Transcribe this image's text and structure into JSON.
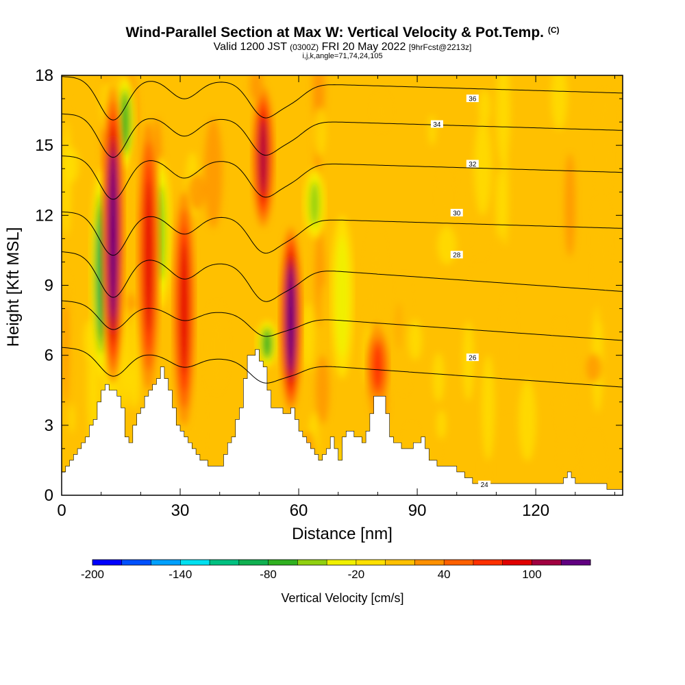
{
  "header": {
    "title": "Wind-Parallel Section at Max W: Vertical Velocity & Pot.Temp.",
    "title_mark": "(C)",
    "valid_a": "Valid 1200 JST",
    "valid_zone": "(0300Z)",
    "valid_b": "FRI 20 May 2022",
    "valid_fcst": "[9hrFcst@2213z]",
    "params": "i,j,k,angle=71,74,24,105"
  },
  "chart_data": {
    "type": "heatmap",
    "xlabel": "Distance [nm]",
    "ylabel": "Height [Kft MSL]",
    "xlim": [
      0,
      142
    ],
    "ylim": [
      0,
      18
    ],
    "x_ticks": [
      "0",
      "30",
      "60",
      "90",
      "120"
    ],
    "y_ticks": [
      "0",
      "3",
      "6",
      "9",
      "12",
      "15",
      "18"
    ],
    "colorbar": {
      "label": "Vertical Velocity [cm/s]",
      "tick_labels": [
        "-200",
        "-140",
        "-80",
        "-20",
        "40",
        "100"
      ],
      "levels": [
        -200,
        -180,
        -160,
        -140,
        -120,
        -100,
        -80,
        -60,
        -40,
        -20,
        0,
        20,
        40,
        60,
        80,
        100,
        120,
        140
      ],
      "colors": [
        "#0000ff",
        "#0050ff",
        "#00a0ff",
        "#00e0f0",
        "#00c080",
        "#10b050",
        "#30b020",
        "#90d010",
        "#f0f000",
        "#ffe000",
        "#ffc000",
        "#ff9000",
        "#ff6000",
        "#ff3000",
        "#e00000",
        "#a00040",
        "#600080"
      ]
    },
    "theta_labels": [
      "24",
      "26",
      "28",
      "30",
      "32",
      "34",
      "36"
    ],
    "terrain_kft": [
      [
        0,
        1.0
      ],
      [
        2,
        1.6
      ],
      [
        4,
        2.0
      ],
      [
        6,
        2.5
      ],
      [
        8,
        3.3
      ],
      [
        9,
        4.0
      ],
      [
        10,
        4.4
      ],
      [
        11,
        4.8
      ],
      [
        12,
        4.6
      ],
      [
        14,
        4.3
      ],
      [
        15,
        3.8
      ],
      [
        16,
        2.6
      ],
      [
        17,
        2.3
      ],
      [
        18,
        3.0
      ],
      [
        20,
        3.8
      ],
      [
        22,
        4.5
      ],
      [
        24,
        5.0
      ],
      [
        25,
        5.4
      ],
      [
        26,
        5.0
      ],
      [
        27,
        4.5
      ],
      [
        28,
        3.8
      ],
      [
        29,
        3.0
      ],
      [
        30,
        2.7
      ],
      [
        31,
        2.4
      ],
      [
        33,
        2.0
      ],
      [
        35,
        1.6
      ],
      [
        37,
        1.3
      ],
      [
        40,
        1.3
      ],
      [
        41,
        1.8
      ],
      [
        43,
        2.6
      ],
      [
        45,
        3.8
      ],
      [
        46,
        5.0
      ],
      [
        47,
        6.0
      ],
      [
        49,
        6.2
      ],
      [
        51,
        5.5
      ],
      [
        52,
        4.5
      ],
      [
        53,
        3.8
      ],
      [
        55,
        3.7
      ],
      [
        57,
        3.4
      ],
      [
        58,
        3.8
      ],
      [
        59,
        3.3
      ],
      [
        60,
        2.8
      ],
      [
        61,
        2.5
      ],
      [
        63,
        2.0
      ],
      [
        65,
        1.6
      ],
      [
        67,
        2.0
      ],
      [
        68,
        2.6
      ],
      [
        69,
        1.9
      ],
      [
        70,
        1.6
      ],
      [
        71,
        2.5
      ],
      [
        72,
        2.8
      ],
      [
        74,
        2.6
      ],
      [
        76,
        2.2
      ],
      [
        78,
        3.5
      ],
      [
        79,
        4.2
      ],
      [
        81,
        4.2
      ],
      [
        82,
        3.4
      ],
      [
        83,
        2.5
      ],
      [
        85,
        2.2
      ],
      [
        87,
        1.9
      ],
      [
        89,
        2.2
      ],
      [
        91,
        2.4
      ],
      [
        93,
        1.6
      ],
      [
        95,
        1.3
      ],
      [
        97,
        1.2
      ],
      [
        100,
        1.1
      ],
      [
        102,
        0.8
      ],
      [
        104,
        0.6
      ],
      [
        106,
        0.5
      ],
      [
        110,
        0.5
      ],
      [
        114,
        0.4
      ],
      [
        118,
        0.4
      ],
      [
        122,
        0.4
      ],
      [
        126,
        0.4
      ],
      [
        127,
        0.7
      ],
      [
        128,
        1.0
      ],
      [
        129,
        0.8
      ],
      [
        130,
        0.5
      ],
      [
        132,
        0.4
      ],
      [
        136,
        0.4
      ],
      [
        140,
        0.3
      ],
      [
        142,
        0.3
      ]
    ],
    "updrafts": [
      {
        "x": 13,
        "z_low": 4.8,
        "z_high": 17.5,
        "peak_cm_s": 140
      },
      {
        "x": 22,
        "z_low": 4.5,
        "z_high": 16.0,
        "peak_cm_s": 80
      },
      {
        "x": 31,
        "z_low": 3.0,
        "z_high": 13.0,
        "peak_cm_s": 90
      },
      {
        "x": 51,
        "z_low": 11.5,
        "z_high": 17.5,
        "peak_cm_s": 100
      },
      {
        "x": 58,
        "z_low": 3.6,
        "z_high": 11.5,
        "peak_cm_s": 140
      },
      {
        "x": 80,
        "z_low": 4.0,
        "z_high": 7.0,
        "peak_cm_s": 60
      }
    ],
    "downdrafts": [
      {
        "x": 10,
        "z_low": 5.0,
        "z_high": 14.0,
        "peak_cm_s": -100
      },
      {
        "x": 16,
        "z_low": 14.0,
        "z_high": 18.0,
        "peak_cm_s": -80
      },
      {
        "x": 25,
        "z_low": 8.0,
        "z_high": 14.5,
        "peak_cm_s": -60
      },
      {
        "x": 52,
        "z_low": 5.5,
        "z_high": 7.5,
        "peak_cm_s": -80
      },
      {
        "x": 64,
        "z_low": 11.0,
        "z_high": 14.0,
        "peak_cm_s": -60
      },
      {
        "x": 71,
        "z_low": 5.0,
        "z_high": 12.0,
        "peak_cm_s": -50
      }
    ]
  }
}
